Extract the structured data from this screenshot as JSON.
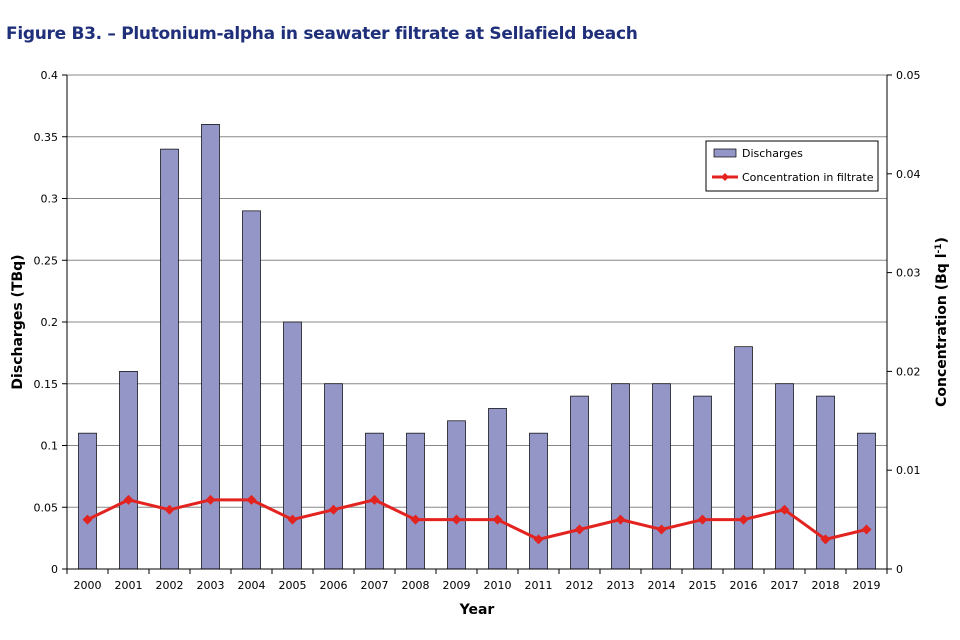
{
  "figure_title": "Figure B3. – Plutonium-alpha in seawater filtrate at Sellafield beach",
  "chart_data": {
    "type": "bar+line",
    "categories": [
      "2000",
      "2001",
      "2002",
      "2003",
      "2004",
      "2005",
      "2006",
      "2007",
      "2008",
      "2009",
      "2010",
      "2011",
      "2012",
      "2013",
      "2014",
      "2015",
      "2016",
      "2017",
      "2018",
      "2019"
    ],
    "series": [
      {
        "name": "Discharges",
        "type": "bar",
        "axis": "left",
        "color": "#9496c8",
        "values": [
          0.11,
          0.16,
          0.34,
          0.36,
          0.29,
          0.2,
          0.15,
          0.11,
          0.11,
          0.12,
          0.13,
          0.11,
          0.14,
          0.15,
          0.15,
          0.14,
          0.18,
          0.15,
          0.14,
          0.11
        ]
      },
      {
        "name": "Concentration in filtrate",
        "type": "line",
        "axis": "right",
        "color": "#e3231f",
        "values": [
          0.005,
          0.007,
          0.006,
          0.007,
          0.007,
          0.005,
          0.006,
          0.007,
          0.005,
          0.005,
          0.005,
          0.003,
          0.004,
          0.005,
          0.004,
          0.005,
          0.005,
          0.006,
          0.003,
          0.004
        ]
      }
    ],
    "xlabel": "Year",
    "ylabel": "Discharges (TBq)",
    "y2label": "Concentration (Bq l-1)",
    "ylim": [
      0,
      0.4
    ],
    "y2lim": [
      0,
      0.05
    ],
    "yticks": [
      "0",
      "0.05",
      "0.1",
      "0.15",
      "0.2",
      "0.25",
      "0.3",
      "0.35",
      "0.4"
    ],
    "y2ticks": [
      "0",
      "0.01",
      "0.02",
      "0.03",
      "0.04",
      "0.05"
    ],
    "grid": true,
    "legend": "top-right"
  }
}
